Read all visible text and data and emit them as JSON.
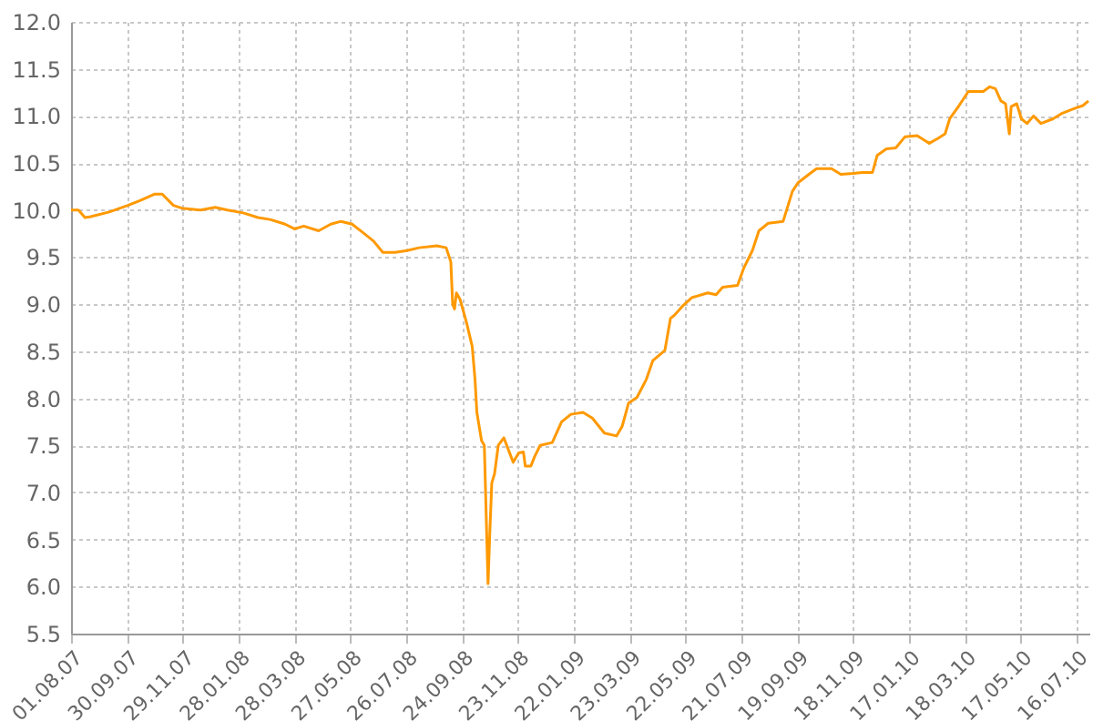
{
  "chart_data": {
    "type": "line",
    "x": [
      "2007-08-01",
      "2007-08-09",
      "2007-08-16",
      "2007-08-22",
      "2007-09-11",
      "2007-10-01",
      "2007-10-14",
      "2007-10-30",
      "2007-11-07",
      "2007-11-19",
      "2007-11-28",
      "2007-12-18",
      "2008-01-03",
      "2008-01-16",
      "2008-02-02",
      "2008-02-18",
      "2008-03-02",
      "2008-03-18",
      "2008-03-28",
      "2008-04-07",
      "2008-04-23",
      "2008-05-06",
      "2008-05-17",
      "2008-05-29",
      "2008-06-11",
      "2008-06-21",
      "2008-07-01",
      "2008-07-14",
      "2008-07-27",
      "2008-08-09",
      "2008-08-28",
      "2008-09-07",
      "2008-09-12",
      "2008-09-14",
      "2008-09-16",
      "2008-09-18",
      "2008-09-22",
      "2008-09-29",
      "2008-10-05",
      "2008-10-08",
      "2008-10-10",
      "2008-10-15",
      "2008-10-18",
      "2008-10-22",
      "2008-10-24",
      "2008-10-26",
      "2008-10-29",
      "2008-11-02",
      "2008-11-08",
      "2008-11-13",
      "2008-11-18",
      "2008-11-24",
      "2008-11-29",
      "2008-12-01",
      "2008-12-07",
      "2008-12-11",
      "2008-12-17",
      "2008-12-30",
      "2009-01-09",
      "2009-01-19",
      "2009-02-01",
      "2009-02-11",
      "2009-02-24",
      "2009-03-09",
      "2009-03-15",
      "2009-03-22",
      "2009-03-31",
      "2009-04-10",
      "2009-04-17",
      "2009-04-30",
      "2009-05-06",
      "2009-05-10",
      "2009-05-19",
      "2009-05-29",
      "2009-06-15",
      "2009-06-24",
      "2009-07-01",
      "2009-07-17",
      "2009-07-24",
      "2009-08-02",
      "2009-08-09",
      "2009-08-19",
      "2009-09-04",
      "2009-09-14",
      "2009-09-20",
      "2009-10-03",
      "2009-10-10",
      "2009-10-26",
      "2009-11-05",
      "2009-11-18",
      "2009-11-28",
      "2009-12-09",
      "2009-12-14",
      "2009-12-24",
      "2010-01-03",
      "2010-01-13",
      "2010-01-26",
      "2010-02-08",
      "2010-02-17",
      "2010-02-25",
      "2010-03-02",
      "2010-03-12",
      "2010-03-22",
      "2010-04-07",
      "2010-04-14",
      "2010-04-20",
      "2010-04-26",
      "2010-05-01",
      "2010-05-05",
      "2010-05-07",
      "2010-05-13",
      "2010-05-18",
      "2010-05-24",
      "2010-05-31",
      "2010-06-08",
      "2010-06-21",
      "2010-07-01",
      "2010-07-14",
      "2010-07-23",
      "2010-07-29"
    ],
    "series": [
      {
        "color": "#ff9900",
        "values": [
          10.0,
          10.0,
          9.92,
          9.93,
          9.98,
          10.05,
          10.1,
          10.17,
          10.17,
          10.05,
          10.02,
          10.0,
          10.03,
          10.0,
          9.97,
          9.92,
          9.9,
          9.85,
          9.8,
          9.83,
          9.78,
          9.85,
          9.88,
          9.85,
          9.75,
          9.67,
          9.55,
          9.55,
          9.57,
          9.6,
          9.62,
          9.6,
          9.45,
          9.0,
          8.95,
          9.12,
          9.05,
          8.8,
          8.55,
          8.2,
          7.85,
          7.55,
          7.5,
          6.03,
          6.6,
          7.1,
          7.2,
          7.5,
          7.58,
          7.45,
          7.32,
          7.42,
          7.43,
          7.28,
          7.28,
          7.38,
          7.5,
          7.53,
          7.75,
          7.83,
          7.85,
          7.79,
          7.63,
          7.6,
          7.7,
          7.95,
          8.01,
          8.2,
          8.4,
          8.51,
          8.85,
          8.88,
          8.98,
          9.07,
          9.12,
          9.1,
          9.18,
          9.2,
          9.39,
          9.57,
          9.78,
          9.86,
          9.88,
          10.2,
          10.29,
          10.39,
          10.44,
          10.44,
          10.38,
          10.39,
          10.4,
          10.4,
          10.58,
          10.65,
          10.66,
          10.78,
          10.79,
          10.71,
          10.76,
          10.81,
          10.97,
          11.11,
          11.26,
          11.26,
          11.31,
          11.29,
          11.16,
          11.13,
          10.81,
          11.1,
          11.13,
          10.97,
          10.92,
          11.0,
          10.92,
          10.97,
          11.03,
          11.08,
          11.11,
          11.16
        ]
      }
    ],
    "xlim": [
      "2007-08-01",
      "2010-07-30"
    ],
    "xticks": [
      {
        "value": "2007-08-01",
        "label": "01.08.07"
      },
      {
        "value": "2007-09-30",
        "label": "30.09.07"
      },
      {
        "value": "2007-11-29",
        "label": "29.11.07"
      },
      {
        "value": "2008-01-28",
        "label": "28.01.08"
      },
      {
        "value": "2008-03-28",
        "label": "28.03.08"
      },
      {
        "value": "2008-05-27",
        "label": "27.05.08"
      },
      {
        "value": "2008-07-26",
        "label": "26.07.08"
      },
      {
        "value": "2008-09-24",
        "label": "24.09.08"
      },
      {
        "value": "2008-11-23",
        "label": "23.11.08"
      },
      {
        "value": "2009-01-22",
        "label": "22.01.09"
      },
      {
        "value": "2009-03-23",
        "label": "23.03.09"
      },
      {
        "value": "2009-05-22",
        "label": "22.05.09"
      },
      {
        "value": "2009-07-21",
        "label": "21.07.09"
      },
      {
        "value": "2009-09-19",
        "label": "19.09.09"
      },
      {
        "value": "2009-11-18",
        "label": "18.11.09"
      },
      {
        "value": "2010-01-17",
        "label": "17.01.10"
      },
      {
        "value": "2010-03-18",
        "label": "18.03.10"
      },
      {
        "value": "2010-05-17",
        "label": "17.05.10"
      },
      {
        "value": "2010-07-16",
        "label": "16.07.10"
      }
    ],
    "ylim": [
      5.5,
      12.0
    ],
    "yticks": [
      {
        "value": 5.5,
        "label": "5.5"
      },
      {
        "value": 6,
        "label": "6.0"
      },
      {
        "value": 6.5,
        "label": "6.5"
      },
      {
        "value": 7,
        "label": "7.0"
      },
      {
        "value": 7.5,
        "label": "7.5"
      },
      {
        "value": 8,
        "label": "8.0"
      },
      {
        "value": 8.5,
        "label": "8.5"
      },
      {
        "value": 9,
        "label": "9.0"
      },
      {
        "value": 9.5,
        "label": "9.5"
      },
      {
        "value": 10,
        "label": "10.0"
      },
      {
        "value": 10.5,
        "label": "10.5"
      },
      {
        "value": 11,
        "label": "11.0"
      },
      {
        "value": 11.5,
        "label": "11.5"
      },
      {
        "value": 12,
        "label": "12.0"
      }
    ],
    "grid": true,
    "line_style": "solid"
  }
}
